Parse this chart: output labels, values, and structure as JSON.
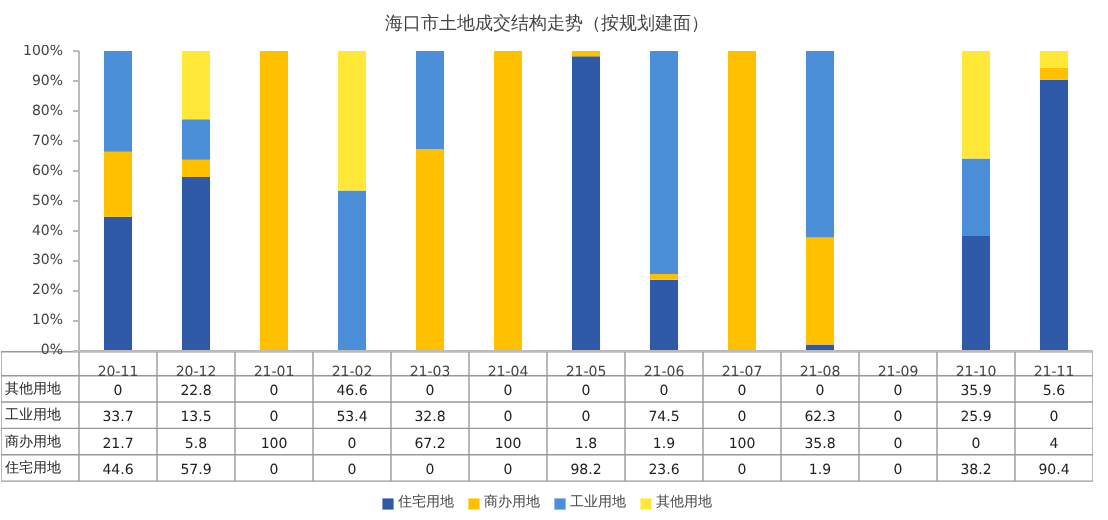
{
  "chart_data": {
    "type": "bar",
    "stacked": true,
    "title": "海口市土地成交结构走势（按规划建面）",
    "categories": [
      "20-11",
      "20-12",
      "21-01",
      "21-02",
      "21-03",
      "21-04",
      "21-05",
      "21-06",
      "21-07",
      "21-08",
      "21-09",
      "21-10",
      "21-11"
    ],
    "series": [
      {
        "name": "住宅用地",
        "color": "#2f5aa8",
        "values": [
          44.6,
          57.9,
          0,
          0,
          0,
          0,
          98.2,
          23.6,
          0,
          1.9,
          0,
          38.2,
          90.4
        ]
      },
      {
        "name": "商办用地",
        "color": "#ffc000",
        "values": [
          21.7,
          5.8,
          100,
          0,
          67.2,
          100,
          1.8,
          1.9,
          100,
          35.8,
          0,
          0,
          4
        ]
      },
      {
        "name": "工业用地",
        "color": "#4a8fd8",
        "values": [
          33.7,
          13.5,
          0,
          53.4,
          32.8,
          0,
          0,
          74.5,
          0,
          62.3,
          0,
          25.9,
          0
        ]
      },
      {
        "name": "其他用地",
        "color": "#ffe838",
        "values": [
          0,
          22.8,
          0,
          46.6,
          0,
          0,
          0,
          0,
          0,
          0,
          0,
          35.9,
          5.6
        ]
      }
    ],
    "ylim": [
      0,
      100
    ],
    "yticks": [
      {
        "value": 0,
        "label": "0%"
      },
      {
        "value": 10,
        "label": "10%"
      },
      {
        "value": 20,
        "label": "20%"
      },
      {
        "value": 30,
        "label": "30%"
      },
      {
        "value": 40,
        "label": "40%"
      },
      {
        "value": 50,
        "label": "50%"
      },
      {
        "value": 60,
        "label": "60%"
      },
      {
        "value": 70,
        "label": "70%"
      },
      {
        "value": 80,
        "label": "80%"
      },
      {
        "value": 90,
        "label": "90%"
      },
      {
        "value": 100,
        "label": "100%"
      }
    ],
    "data_labels": true,
    "legend": "bottom"
  }
}
